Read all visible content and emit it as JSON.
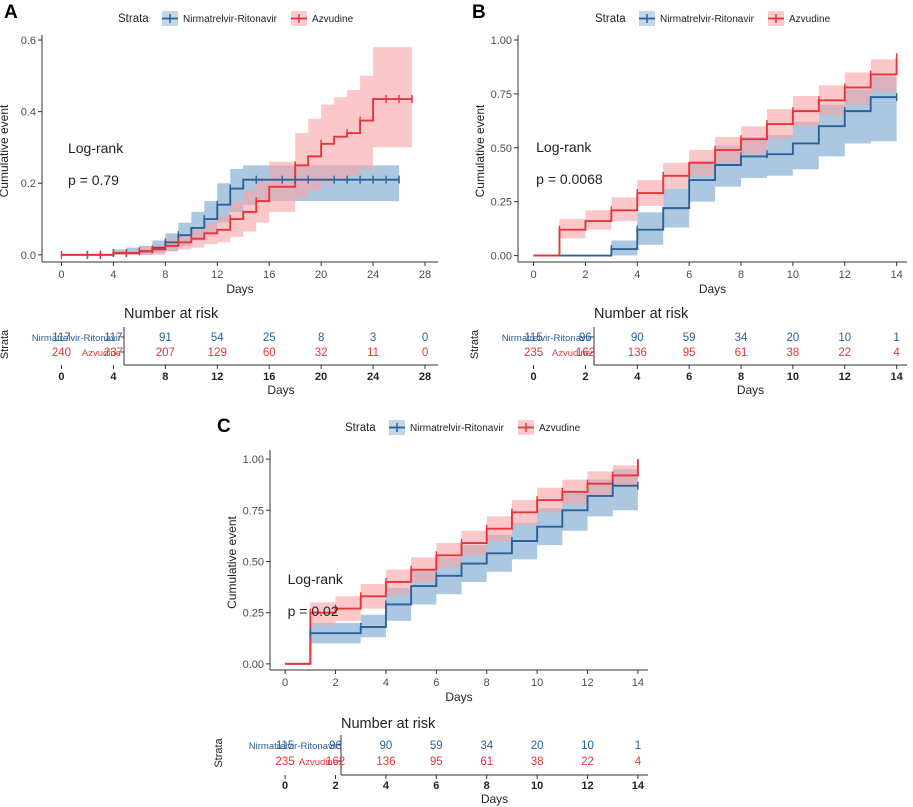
{
  "colors": {
    "nr": "#2a6199",
    "nr_band": "#8fb5d6",
    "az": "#e8343a",
    "az_band": "#f8a3a6",
    "axis": "#333333",
    "tick_text": "#4d4d4d"
  },
  "legend": {
    "title": "Strata",
    "labels": [
      "Nirmatrelvir-Ritonavir",
      "Azvudine"
    ]
  },
  "risk_table": {
    "title": "Number at risk",
    "strata_label": "Strata",
    "xlabel": "Days",
    "row_labels": [
      "Nirmatrelvir-Ritonavir",
      "Azvudine"
    ]
  },
  "chart_data": [
    {
      "panel": "A",
      "type": "line",
      "xlabel": "Days",
      "ylabel": "Cumulative event",
      "xlim": [
        -1.5,
        29
      ],
      "ylim": [
        -0.02,
        0.6
      ],
      "xticks": [
        0,
        4,
        8,
        12,
        16,
        20,
        24,
        28
      ],
      "yticks": [
        "0.0",
        "0.2",
        "0.4",
        "0.6"
      ],
      "ytick_values": [
        0,
        0.2,
        0.4,
        0.6
      ],
      "annotation": [
        "Log-rank",
        "p = 0.79"
      ],
      "series": [
        {
          "name": "Nirmatrelvir-Ritonavir",
          "x": [
            0,
            4,
            5,
            6,
            7,
            8,
            9,
            10,
            11,
            12,
            13,
            14,
            15,
            16,
            26
          ],
          "y": [
            0,
            0.005,
            0.005,
            0.01,
            0.02,
            0.035,
            0.055,
            0.075,
            0.1,
            0.14,
            0.185,
            0.21,
            0.21,
            0.21,
            0.21
          ],
          "lower": [
            0,
            0,
            0,
            0,
            0.005,
            0.01,
            0.025,
            0.04,
            0.06,
            0.09,
            0.12,
            0.14,
            0.15,
            0.15,
            0.15
          ],
          "upper": [
            0,
            0.015,
            0.02,
            0.025,
            0.04,
            0.06,
            0.09,
            0.12,
            0.15,
            0.2,
            0.24,
            0.25,
            0.25,
            0.25,
            0.25
          ],
          "censor_x": [
            2,
            3,
            4,
            5,
            8,
            9,
            11,
            12,
            13,
            15,
            17,
            18,
            19,
            21,
            22,
            23,
            24,
            25,
            26
          ],
          "censor_y": [
            0,
            0,
            0.005,
            0.005,
            0.035,
            0.055,
            0.1,
            0.14,
            0.185,
            0.21,
            0.21,
            0.21,
            0.21,
            0.21,
            0.21,
            0.21,
            0.21,
            0.21,
            0.21
          ],
          "end_x": 26
        },
        {
          "name": "Azvudine",
          "x": [
            0,
            4,
            6,
            7,
            8,
            9,
            10,
            11,
            12,
            13,
            14,
            15,
            16,
            17,
            18,
            19,
            20,
            21,
            22,
            23,
            24,
            27
          ],
          "y": [
            0,
            0.005,
            0.01,
            0.015,
            0.025,
            0.035,
            0.045,
            0.06,
            0.07,
            0.1,
            0.12,
            0.15,
            0.19,
            0.19,
            0.25,
            0.275,
            0.31,
            0.33,
            0.34,
            0.375,
            0.435,
            0.435
          ],
          "lower": [
            0,
            0,
            0,
            0,
            0.01,
            0.015,
            0.02,
            0.03,
            0.035,
            0.05,
            0.065,
            0.09,
            0.12,
            0.12,
            0.16,
            0.18,
            0.2,
            0.21,
            0.22,
            0.24,
            0.3,
            0.3
          ],
          "upper": [
            0,
            0.01,
            0.02,
            0.03,
            0.045,
            0.055,
            0.07,
            0.09,
            0.11,
            0.15,
            0.18,
            0.21,
            0.26,
            0.26,
            0.34,
            0.38,
            0.42,
            0.44,
            0.46,
            0.5,
            0.58,
            0.58
          ],
          "censor_x": [
            0,
            2,
            3,
            4,
            5,
            6,
            7,
            9,
            10,
            13,
            15,
            18,
            20,
            22,
            23,
            25,
            26,
            27
          ],
          "censor_y": [
            0,
            0,
            0,
            0.005,
            0.005,
            0.01,
            0.015,
            0.035,
            0.045,
            0.1,
            0.15,
            0.25,
            0.31,
            0.34,
            0.375,
            0.435,
            0.435,
            0.435
          ],
          "end_x": 27
        }
      ],
      "risk": {
        "times": [
          "0",
          "4",
          "8",
          "12",
          "16",
          "20",
          "24",
          "28"
        ],
        "nr": [
          "117",
          "117",
          "91",
          "54",
          "25",
          "8",
          "3",
          "0"
        ],
        "az": [
          "240",
          "237",
          "207",
          "129",
          "60",
          "32",
          "11",
          "0"
        ]
      }
    },
    {
      "panel": "B",
      "type": "line",
      "xlabel": "Days",
      "ylabel": "Cumulative event",
      "xlim": [
        -0.6,
        14.4
      ],
      "ylim": [
        -0.03,
        1.0
      ],
      "xticks": [
        0,
        2,
        4,
        6,
        8,
        10,
        12,
        14
      ],
      "yticks": [
        "0.00",
        "0.25",
        "0.50",
        "0.75",
        "1.00"
      ],
      "ytick_values": [
        0,
        0.25,
        0.5,
        0.75,
        1.0
      ],
      "annotation": [
        "Log-rank",
        "p = 0.0068"
      ],
      "series": [
        {
          "name": "Nirmatrelvir-Ritonavir",
          "x": [
            0,
            3,
            4,
            5,
            6,
            7,
            8,
            9,
            10,
            11,
            12,
            13,
            14
          ],
          "y": [
            0,
            0.03,
            0.12,
            0.22,
            0.35,
            0.42,
            0.46,
            0.47,
            0.52,
            0.6,
            0.67,
            0.735,
            0.735
          ],
          "lower": [
            0,
            0,
            0.05,
            0.13,
            0.25,
            0.32,
            0.36,
            0.37,
            0.4,
            0.46,
            0.52,
            0.53,
            0.53
          ],
          "upper": [
            0,
            0.07,
            0.2,
            0.31,
            0.44,
            0.51,
            0.55,
            0.56,
            0.62,
            0.7,
            0.77,
            0.83,
            0.83
          ],
          "censor_x": [
            3,
            4,
            6,
            8,
            9,
            12,
            14
          ],
          "censor_y": [
            0.03,
            0.12,
            0.35,
            0.46,
            0.47,
            0.67,
            0.735
          ],
          "end_x": 14
        },
        {
          "name": "Azvudine",
          "x": [
            0,
            1,
            2,
            3,
            4,
            5,
            6,
            7,
            8,
            9,
            10,
            11,
            12,
            13,
            14
          ],
          "y": [
            0,
            0.12,
            0.16,
            0.21,
            0.29,
            0.37,
            0.43,
            0.49,
            0.54,
            0.61,
            0.67,
            0.72,
            0.78,
            0.84,
            0.92
          ],
          "lower": [
            0,
            0.08,
            0.12,
            0.16,
            0.23,
            0.31,
            0.37,
            0.43,
            0.47,
            0.54,
            0.6,
            0.65,
            0.7,
            0.76,
            0.8
          ],
          "upper": [
            0,
            0.17,
            0.21,
            0.27,
            0.35,
            0.43,
            0.49,
            0.55,
            0.6,
            0.68,
            0.74,
            0.79,
            0.85,
            0.91,
            0.97
          ],
          "censor_x": [
            1,
            3,
            4,
            5,
            7,
            8,
            9,
            10,
            11,
            12,
            13,
            14
          ],
          "censor_y": [
            0.12,
            0.21,
            0.29,
            0.37,
            0.49,
            0.54,
            0.61,
            0.67,
            0.72,
            0.78,
            0.84,
            0.92
          ],
          "end_x": 14
        }
      ],
      "risk": {
        "times": [
          "0",
          "2",
          "4",
          "6",
          "8",
          "10",
          "12",
          "14"
        ],
        "nr": [
          "115",
          "96",
          "90",
          "59",
          "34",
          "20",
          "10",
          "1"
        ],
        "az": [
          "235",
          "162",
          "136",
          "95",
          "61",
          "38",
          "22",
          "4"
        ]
      }
    },
    {
      "panel": "C",
      "type": "line",
      "xlabel": "Days",
      "ylabel": "Cumulative event",
      "xlim": [
        -0.6,
        14.4
      ],
      "ylim": [
        -0.03,
        1.02
      ],
      "xticks": [
        0,
        2,
        4,
        6,
        8,
        10,
        12,
        14
      ],
      "yticks": [
        "0.00",
        "0.25",
        "0.50",
        "0.75",
        "1.00"
      ],
      "ytick_values": [
        0,
        0.25,
        0.5,
        0.75,
        1.0
      ],
      "annotation": [
        "Log-rank",
        "p = 0.02"
      ],
      "series": [
        {
          "name": "Nirmatrelvir-Ritonavir",
          "x": [
            0,
            1,
            3,
            4,
            5,
            6,
            7,
            8,
            9,
            10,
            11,
            12,
            13,
            14
          ],
          "y": [
            0,
            0.15,
            0.18,
            0.29,
            0.38,
            0.43,
            0.49,
            0.54,
            0.6,
            0.67,
            0.75,
            0.82,
            0.87,
            0.87
          ],
          "lower": [
            0,
            0.1,
            0.13,
            0.21,
            0.29,
            0.34,
            0.4,
            0.45,
            0.51,
            0.58,
            0.65,
            0.72,
            0.75,
            0.75
          ],
          "upper": [
            0,
            0.2,
            0.24,
            0.37,
            0.46,
            0.52,
            0.58,
            0.63,
            0.69,
            0.76,
            0.84,
            0.9,
            0.95,
            0.95
          ],
          "censor_x": [
            1,
            3,
            4,
            6,
            9,
            13,
            14
          ],
          "censor_y": [
            0.15,
            0.18,
            0.29,
            0.43,
            0.6,
            0.87,
            0.87
          ],
          "end_x": 14
        },
        {
          "name": "Azvudine",
          "x": [
            0,
            1,
            2,
            3,
            4,
            5,
            6,
            7,
            8,
            9,
            10,
            11,
            12,
            13,
            14
          ],
          "y": [
            0,
            0.25,
            0.27,
            0.33,
            0.4,
            0.46,
            0.53,
            0.59,
            0.66,
            0.74,
            0.8,
            0.84,
            0.88,
            0.92,
            1.0
          ],
          "lower": [
            0,
            0.19,
            0.21,
            0.27,
            0.34,
            0.4,
            0.47,
            0.53,
            0.6,
            0.68,
            0.74,
            0.78,
            0.82,
            0.86,
            0.93
          ],
          "upper": [
            0,
            0.3,
            0.33,
            0.39,
            0.46,
            0.52,
            0.59,
            0.65,
            0.72,
            0.8,
            0.86,
            0.9,
            0.94,
            0.97,
            1.0
          ],
          "censor_x": [
            1,
            2,
            3,
            4,
            5,
            6,
            7,
            8,
            9,
            10,
            11,
            12,
            13
          ],
          "censor_y": [
            0.25,
            0.27,
            0.33,
            0.4,
            0.46,
            0.53,
            0.59,
            0.66,
            0.74,
            0.8,
            0.84,
            0.88,
            0.92
          ],
          "end_x": 14
        }
      ],
      "risk": {
        "times": [
          "0",
          "2",
          "4",
          "6",
          "8",
          "10",
          "12",
          "14"
        ],
        "nr": [
          "115",
          "96",
          "90",
          "59",
          "34",
          "20",
          "10",
          "1"
        ],
        "az": [
          "235",
          "162",
          "136",
          "95",
          "61",
          "38",
          "22",
          "4"
        ]
      }
    }
  ]
}
